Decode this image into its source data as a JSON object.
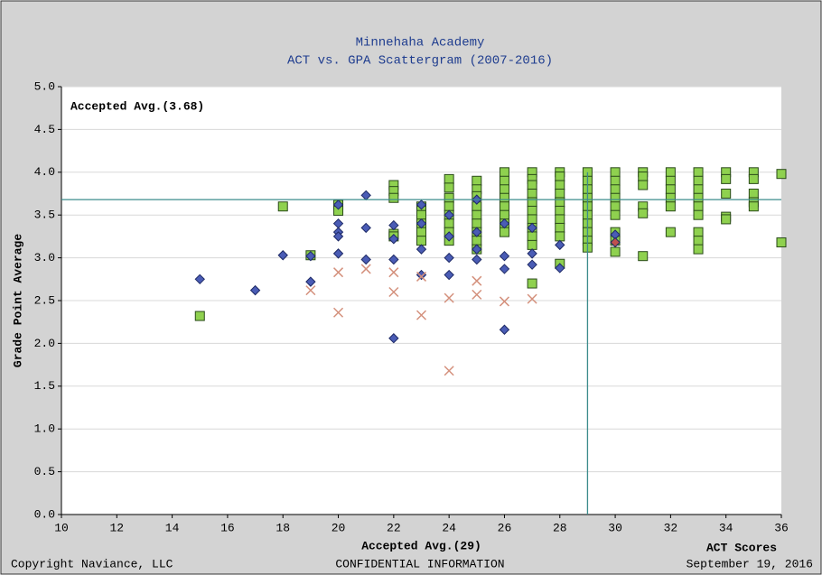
{
  "chart_data": {
    "type": "scatter",
    "title": "Minnehaha Academy",
    "subtitle": "ACT vs. GPA Scattergram (2007-2016)",
    "x_label": "ACT Scores",
    "y_label": "Grade Point Average",
    "xlim": [
      10,
      36
    ],
    "ylim": [
      0,
      5
    ],
    "xticks": [
      10,
      12,
      14,
      16,
      18,
      20,
      22,
      24,
      26,
      28,
      30,
      32,
      34,
      36
    ],
    "yticks": [
      {
        "value": 0,
        "label": "0.0"
      },
      0.5,
      {
        "value": 1,
        "label": "1.0"
      },
      1.5,
      {
        "value": 2,
        "label": "2.0"
      },
      2.5,
      {
        "value": 3,
        "label": "3.0"
      },
      3.5,
      {
        "value": 4,
        "label": "4.0"
      },
      4.5,
      {
        "value": 5,
        "label": "5.0"
      }
    ],
    "grid": "y",
    "annotations": [
      {
        "label": "Accepted Avg.(3.68)",
        "value": 3.68,
        "axis": "y",
        "color": "#3c8c8c"
      },
      {
        "label": "Accepted Avg.(29)",
        "value": 29,
        "axis": "x",
        "color": "#3c8c8c"
      }
    ],
    "series": [
      {
        "marker": "square",
        "color": "#8fd14f",
        "x": [
          15,
          18,
          19,
          20,
          20,
          22,
          22,
          22,
          22,
          22,
          23,
          23,
          23,
          23,
          23,
          23,
          24,
          24,
          24,
          24,
          24,
          24,
          24,
          24,
          25,
          25,
          25,
          25,
          25,
          25,
          25,
          25,
          25,
          26,
          26,
          26,
          26,
          26,
          26,
          26,
          26,
          27,
          27,
          27,
          27,
          27,
          27,
          27,
          27,
          27,
          27,
          27,
          28,
          28,
          28,
          28,
          28,
          28,
          28,
          28,
          28,
          28,
          29,
          29,
          29,
          29,
          29,
          29,
          29,
          29,
          29,
          29,
          30,
          30,
          30,
          30,
          30,
          30,
          30,
          30,
          30,
          31,
          31,
          31,
          31,
          31,
          31,
          32,
          32,
          32,
          32,
          32,
          32,
          33,
          33,
          33,
          33,
          33,
          33,
          33,
          33,
          33,
          34,
          34,
          34,
          34,
          34,
          35,
          35,
          35,
          35,
          35,
          36,
          36
        ],
        "values": [
          2.32,
          3.6,
          3.03,
          3.62,
          3.55,
          3.85,
          3.78,
          3.7,
          3.28,
          3.25,
          3.6,
          3.55,
          3.5,
          3.4,
          3.3,
          3.2,
          3.92,
          3.82,
          3.7,
          3.6,
          3.5,
          3.4,
          3.3,
          3.2,
          3.9,
          3.8,
          3.72,
          3.6,
          3.5,
          3.4,
          3.3,
          3.2,
          3.1,
          4.0,
          3.9,
          3.8,
          3.7,
          3.6,
          3.5,
          3.4,
          3.3,
          4.0,
          3.92,
          3.85,
          3.75,
          3.65,
          3.55,
          3.45,
          3.35,
          3.25,
          3.15,
          2.7,
          4.0,
          3.95,
          3.85,
          3.75,
          3.65,
          3.55,
          3.45,
          3.35,
          3.25,
          2.93,
          4.0,
          3.9,
          3.8,
          3.7,
          3.6,
          3.5,
          3.4,
          3.3,
          3.2,
          3.12,
          4.0,
          3.9,
          3.8,
          3.7,
          3.6,
          3.5,
          3.3,
          3.2,
          3.07,
          4.0,
          3.95,
          3.85,
          3.6,
          3.52,
          3.02,
          4.0,
          3.9,
          3.8,
          3.7,
          3.6,
          3.3,
          4.0,
          3.9,
          3.8,
          3.7,
          3.6,
          3.5,
          3.3,
          3.2,
          3.1,
          4.0,
          3.92,
          3.75,
          3.48,
          3.45,
          4.0,
          3.92,
          3.75,
          3.65,
          3.6,
          3.98,
          3.18
        ]
      },
      {
        "marker": "diamond",
        "color": "#4a5cb5",
        "x": [
          15,
          17,
          18,
          19,
          19,
          20,
          20,
          20,
          20,
          20,
          21,
          21,
          21,
          22,
          22,
          22,
          22,
          23,
          23,
          23,
          23,
          24,
          24,
          24,
          24,
          25,
          25,
          25,
          25,
          26,
          26,
          26,
          26,
          27,
          27,
          27,
          28,
          28,
          30
        ],
        "values": [
          2.75,
          2.62,
          3.03,
          3.02,
          2.72,
          3.62,
          3.4,
          3.3,
          3.25,
          3.05,
          3.73,
          3.35,
          2.98,
          3.38,
          3.22,
          2.98,
          2.06,
          3.62,
          3.4,
          3.1,
          2.8,
          3.5,
          3.25,
          3.0,
          2.8,
          3.68,
          3.3,
          3.1,
          2.98,
          3.4,
          3.02,
          2.87,
          2.16,
          3.35,
          3.05,
          2.92,
          3.15,
          2.88,
          3.27
        ]
      },
      {
        "marker": "diamond",
        "color": "#c0504d",
        "x": [
          30
        ],
        "values": [
          3.18
        ]
      },
      {
        "marker": "cross",
        "color": "#d4907c",
        "x": [
          19,
          20,
          20,
          21,
          22,
          22,
          23,
          23,
          24,
          24,
          25,
          25,
          26,
          27
        ],
        "values": [
          2.62,
          2.83,
          2.36,
          2.87,
          2.83,
          2.6,
          2.78,
          2.33,
          2.53,
          1.68,
          2.73,
          2.57,
          2.49,
          2.52
        ]
      }
    ]
  },
  "footer": {
    "left": "Copyright Naviance, LLC",
    "center": "CONFIDENTIAL INFORMATION",
    "right": "September 19, 2016"
  }
}
